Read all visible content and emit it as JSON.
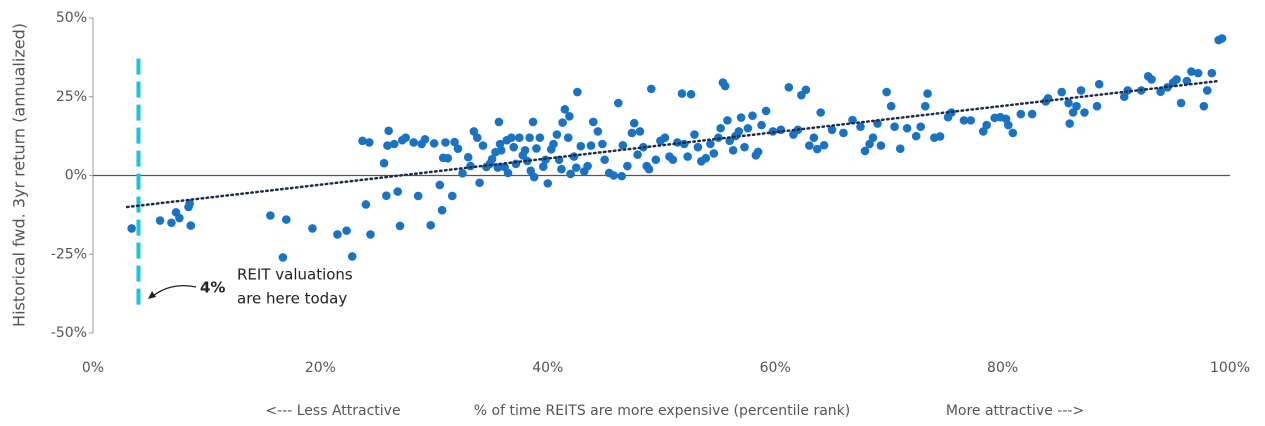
{
  "chart_data": {
    "type": "scatter",
    "y_label": "Historical fwd. 3yr return (annualized)",
    "x_label_left": "<--- Less Attractive",
    "x_label": "% of time REITS are more expensive (percentile rank)",
    "x_label_right": "More attractive --->",
    "color": "#1a73c2",
    "xlim": [
      0,
      100
    ],
    "xticks": [
      {
        "value": 0,
        "label": "0%"
      },
      {
        "value": 20,
        "label": "20%"
      },
      {
        "value": 40,
        "label": "40%"
      },
      {
        "value": 60,
        "label": "60%"
      },
      {
        "value": 80,
        "label": "80%"
      },
      {
        "value": 100,
        "label": "100%"
      }
    ],
    "ylim": [
      -50,
      50
    ],
    "yticks": [
      {
        "value": -50,
        "label": "-50%"
      },
      {
        "value": -25,
        "label": "-25%"
      },
      {
        "value": 0,
        "label": "0%"
      },
      {
        "value": 25,
        "label": "25%"
      },
      {
        "value": 50,
        "label": "50%"
      }
    ],
    "trendline": {
      "x": [
        3,
        99
      ],
      "y": [
        -10,
        30
      ],
      "color": "#1c2b4a"
    },
    "reference_line": {
      "value": 4,
      "label": "4%",
      "color": "#1ec3d6",
      "ylim": [
        -41,
        38
      ]
    },
    "annotation": [
      "REIT valuations",
      "are here today"
    ],
    "x": [
      3.4,
      5.9,
      6.9,
      7.3,
      7.6,
      8.4,
      8.5,
      8.6,
      15.6,
      16.7,
      17,
      19.3,
      21.5,
      22.3,
      22.8,
      23.7,
      24,
      24.4,
      24.3,
      25.6,
      25.8,
      25.9,
      26,
      26.5,
      26.8,
      27,
      27.2,
      27.5,
      28.2,
      28.6,
      28.9,
      29.2,
      29.7,
      30,
      30.5,
      30.7,
      30.8,
      31,
      31.2,
      31.6,
      31.8,
      32.1,
      32.5,
      33,
      33.2,
      33.5,
      33.8,
      34,
      34.3,
      34.6,
      34.9,
      35.1,
      35.4,
      35.6,
      35.7,
      35.8,
      35.9,
      36.2,
      36.4,
      36.5,
      36.8,
      37,
      37.2,
      37.5,
      37.8,
      38,
      38.2,
      38.4,
      38.5,
      38.7,
      38.8,
      39,
      39.3,
      39.6,
      39.8,
      40,
      40.3,
      40.5,
      40.8,
      41,
      41.2,
      41.3,
      41.5,
      41.8,
      41.9,
      42,
      42.3,
      42.5,
      42.6,
      42.9,
      43.2,
      43.5,
      43.8,
      44,
      44.4,
      44.8,
      45,
      45.4,
      45.8,
      46.2,
      46.5,
      46.6,
      47,
      47.4,
      47.6,
      47.9,
      48.1,
      48.4,
      48.7,
      48.9,
      49.1,
      49.5,
      49.9,
      50.3,
      50.7,
      51,
      51.4,
      51.8,
      52,
      52.3,
      52.6,
      52.9,
      53.2,
      53.5,
      53.9,
      54.3,
      54.6,
      55,
      55.2,
      55.4,
      55.6,
      55.8,
      56,
      56.3,
      56.5,
      56.8,
      57,
      57.3,
      57.6,
      58,
      58.3,
      58.5,
      58.8,
      59.2,
      59.8,
      60.5,
      61.2,
      61.6,
      62,
      62.3,
      62.7,
      63,
      63.4,
      63.7,
      64,
      64.3,
      65,
      66,
      66.8,
      67.5,
      67.9,
      68.3,
      68.6,
      69,
      69.3,
      69.8,
      70.2,
      70.5,
      71,
      71.6,
      72.4,
      72.8,
      73.4,
      73.2,
      74,
      74.5,
      75.2,
      75.5,
      76.6,
      77.2,
      78.3,
      78.6,
      79.3,
      79.8,
      80.3,
      80.5,
      80.9,
      81.6,
      82.6,
      83.8,
      84,
      85.2,
      85.8,
      85.9,
      86.2,
      86.5,
      86.9,
      87.2,
      88.3,
      88.5,
      90.7,
      91,
      92.2,
      92.8,
      93.1,
      93.9,
      94.5,
      95,
      95.3,
      95.7,
      96.2,
      96.6,
      97.2,
      97.7,
      98,
      98.4,
      99,
      99.3
    ],
    "values": [
      -16.8,
      -14.3,
      -15,
      -11.7,
      -13.5,
      -10,
      -8.9,
      -15.9,
      -12.7,
      -26,
      -14,
      -16.8,
      -18.7,
      -17.5,
      -25.7,
      11,
      -9.2,
      -18.7,
      10.5,
      3.9,
      -6.4,
      9.5,
      14.2,
      10,
      -5.1,
      -16,
      11.2,
      12,
      10.5,
      -6.5,
      10,
      11.5,
      -15.8,
      10.2,
      -3,
      -11,
      5.6,
      10.5,
      5.5,
      -6.5,
      10.6,
      8.5,
      0.7,
      5.8,
      3,
      14,
      12,
      -2.3,
      9.5,
      2.7,
      3.7,
      5.2,
      7.4,
      2.5,
      17,
      10,
      8,
      2.7,
      11.2,
      0.8,
      12,
      9,
      3.7,
      12,
      6.4,
      8,
      4.6,
      12,
      1.5,
      17,
      -0.5,
      8.6,
      12,
      2.8,
      5,
      -2.5,
      8.3,
      10,
      13,
      5,
      2,
      16.8,
      21,
      12,
      18.8,
      0.5,
      6,
      2.5,
      26.5,
      9.3,
      1.3,
      3,
      9.5,
      17,
      14,
      10,
      5,
      0.8,
      0,
      23,
      -0.2,
      9.6,
      3,
      13.5,
      16.6,
      6.6,
      14,
      9,
      3,
      2,
      27.5,
      5,
      11,
      12,
      6,
      5,
      10.5,
      26,
      10,
      6,
      25.8,
      13,
      9,
      4.5,
      5.5,
      10,
      7,
      12,
      15,
      29.5,
      28.4,
      17.5,
      11,
      8,
      12.5,
      14,
      18.4,
      9,
      15,
      19,
      6.4,
      7.5,
      16,
      20.5,
      14,
      14.5,
      28,
      13,
      14.5,
      25.5,
      27.2,
      9.5,
      12,
      8.4,
      20,
      9.6,
      14.5,
      13.5,
      17.6,
      15.5,
      7.8,
      10,
      12,
      16.5,
      9.5,
      26.5,
      22,
      15.5,
      8.5,
      15,
      12.5,
      15.5,
      26,
      22,
      12,
      12.4,
      18.5,
      20,
      17.5,
      17.5,
      14,
      16,
      18.3,
      18.5,
      18,
      16,
      13.5,
      19.5,
      19.5,
      23.5,
      24.5,
      26.5,
      23,
      16.5,
      20,
      22,
      27,
      20,
      22,
      29,
      25,
      27,
      27,
      31.5,
      30.5,
      26.6,
      28,
      29.5,
      30.5,
      23,
      30,
      33,
      32.5,
      22,
      27,
      32.5,
      43,
      43.5
    ]
  }
}
